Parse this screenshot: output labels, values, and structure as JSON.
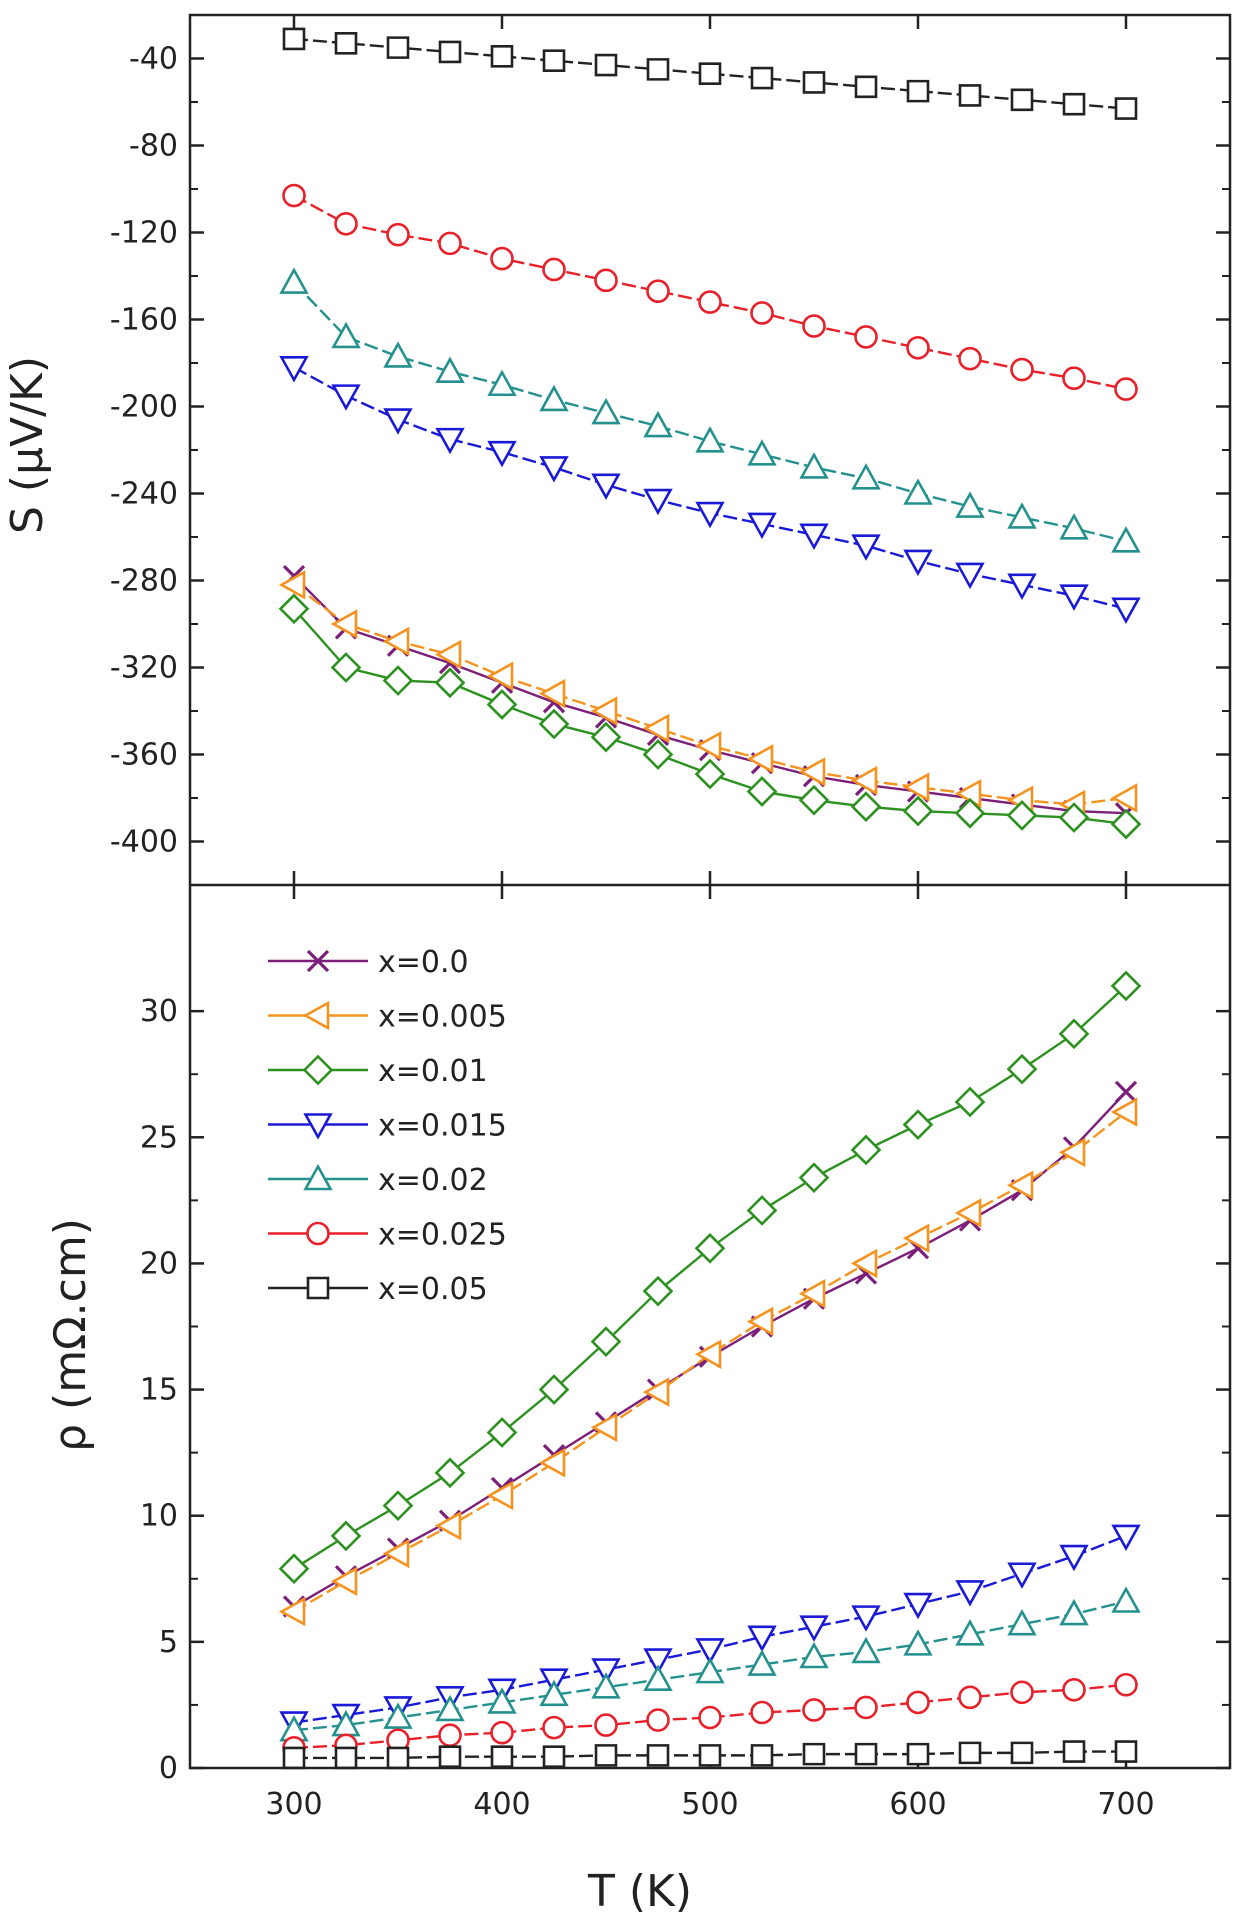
{
  "chart_data": [
    {
      "type": "line",
      "ylabel": "S (μV/K)",
      "xlabel": "",
      "xlim": [
        250,
        750
      ],
      "ylim": [
        -420,
        -20
      ],
      "xticks": [
        300,
        400,
        500,
        600,
        700
      ],
      "yticks": [
        -40,
        -80,
        -120,
        -160,
        -200,
        -240,
        -280,
        -320,
        -360,
        -400
      ],
      "x": [
        300,
        325,
        350,
        375,
        400,
        425,
        450,
        475,
        500,
        525,
        550,
        575,
        600,
        625,
        650,
        675,
        700
      ],
      "series": [
        {
          "name": "x=0.0",
          "marker": "x",
          "color": "#7b1f7b",
          "values": [
            -278,
            -302,
            -310,
            -318,
            -327,
            -336,
            -343,
            -351,
            -358,
            -364,
            -370,
            -374,
            -377,
            -380,
            -383,
            -386,
            -387
          ]
        },
        {
          "name": "x=0.005",
          "marker": "triangle-left",
          "color": "#f5931e",
          "values": [
            -282,
            -300,
            -308,
            -314,
            -324,
            -332,
            -340,
            -348,
            -356,
            -362,
            -368,
            -372,
            -375,
            -378,
            -381,
            -383,
            -380
          ]
        },
        {
          "name": "x=0.01",
          "marker": "diamond",
          "color": "#2d9120",
          "values": [
            -293,
            -320,
            -326,
            -327,
            -337,
            -346,
            -352,
            -360,
            -369,
            -377,
            -381,
            -384,
            -386,
            -387,
            -388,
            -389,
            -392
          ]
        },
        {
          "name": "x=0.015",
          "marker": "triangle-down",
          "color": "#1a1ad6",
          "values": [
            -182,
            -195,
            -206,
            -215,
            -221,
            -228,
            -236,
            -243,
            -249,
            -254,
            -259,
            -264,
            -271,
            -277,
            -282,
            -287,
            -293
          ]
        },
        {
          "name": "x=0.02",
          "marker": "triangle-up",
          "color": "#24918f",
          "values": [
            -143,
            -168,
            -177,
            -184,
            -190,
            -197,
            -203,
            -209,
            -216,
            -222,
            -228,
            -233,
            -240,
            -246,
            -251,
            -256,
            -262
          ]
        },
        {
          "name": "x=0.025",
          "marker": "circle",
          "color": "#e8202a",
          "values": [
            -103,
            -116,
            -121,
            -125,
            -132,
            -137,
            -142,
            -147,
            -152,
            -157,
            -163,
            -168,
            -173,
            -178,
            -183,
            -187,
            -192
          ]
        },
        {
          "name": "x=0.05",
          "marker": "square",
          "color": "#222222",
          "values": [
            -31,
            -33,
            -35,
            -37,
            -39,
            -41,
            -43,
            -45,
            -47,
            -49,
            -51,
            -53,
            -55,
            -57,
            -59,
            -61,
            -63
          ]
        }
      ]
    },
    {
      "type": "line",
      "ylabel": "ρ (mΩ.cm)",
      "xlabel": "T (K)",
      "xlim": [
        250,
        750
      ],
      "ylim": [
        0,
        35
      ],
      "xticks": [
        300,
        400,
        500,
        600,
        700
      ],
      "yticks": [
        0,
        5,
        10,
        15,
        20,
        25,
        30
      ],
      "legend": "upper-left",
      "x": [
        300,
        325,
        350,
        375,
        400,
        425,
        450,
        475,
        500,
        525,
        550,
        575,
        600,
        625,
        650,
        675,
        700
      ],
      "series": [
        {
          "name": "x=0.0",
          "marker": "x",
          "color": "#7b1f7b",
          "values": [
            6.4,
            7.6,
            8.7,
            9.8,
            11.1,
            12.4,
            13.7,
            15.0,
            16.3,
            17.5,
            18.6,
            19.6,
            20.6,
            21.7,
            22.9,
            24.6,
            26.8
          ]
        },
        {
          "name": "x=0.005",
          "marker": "triangle-left",
          "color": "#f5931e",
          "values": [
            6.2,
            7.4,
            8.5,
            9.6,
            10.8,
            12.1,
            13.5,
            14.9,
            16.4,
            17.7,
            18.8,
            20.0,
            21.0,
            22.0,
            23.1,
            24.4,
            26.0
          ]
        },
        {
          "name": "x=0.01",
          "marker": "diamond",
          "color": "#2d9120",
          "values": [
            7.9,
            9.2,
            10.4,
            11.7,
            13.3,
            15.0,
            16.9,
            18.9,
            20.6,
            22.1,
            23.4,
            24.5,
            25.5,
            26.4,
            27.7,
            29.1,
            31.0
          ]
        },
        {
          "name": "x=0.015",
          "marker": "triangle-down",
          "color": "#1a1ad6",
          "values": [
            1.8,
            2.1,
            2.4,
            2.8,
            3.1,
            3.5,
            3.9,
            4.3,
            4.7,
            5.2,
            5.6,
            6.0,
            6.5,
            7.0,
            7.7,
            8.4,
            9.2
          ]
        },
        {
          "name": "x=0.02",
          "marker": "triangle-up",
          "color": "#24918f",
          "values": [
            1.5,
            1.7,
            2.0,
            2.3,
            2.6,
            2.9,
            3.2,
            3.5,
            3.8,
            4.1,
            4.4,
            4.6,
            4.9,
            5.3,
            5.7,
            6.1,
            6.6
          ]
        },
        {
          "name": "x=0.025",
          "marker": "circle",
          "color": "#e8202a",
          "values": [
            0.8,
            0.9,
            1.1,
            1.3,
            1.4,
            1.6,
            1.7,
            1.9,
            2.0,
            2.2,
            2.3,
            2.4,
            2.6,
            2.8,
            3.0,
            3.1,
            3.3
          ]
        },
        {
          "name": "x=0.05",
          "marker": "square",
          "color": "#222222",
          "values": [
            0.4,
            0.4,
            0.4,
            0.45,
            0.45,
            0.45,
            0.5,
            0.5,
            0.5,
            0.5,
            0.55,
            0.55,
            0.55,
            0.6,
            0.6,
            0.65,
            0.65
          ]
        }
      ]
    }
  ]
}
